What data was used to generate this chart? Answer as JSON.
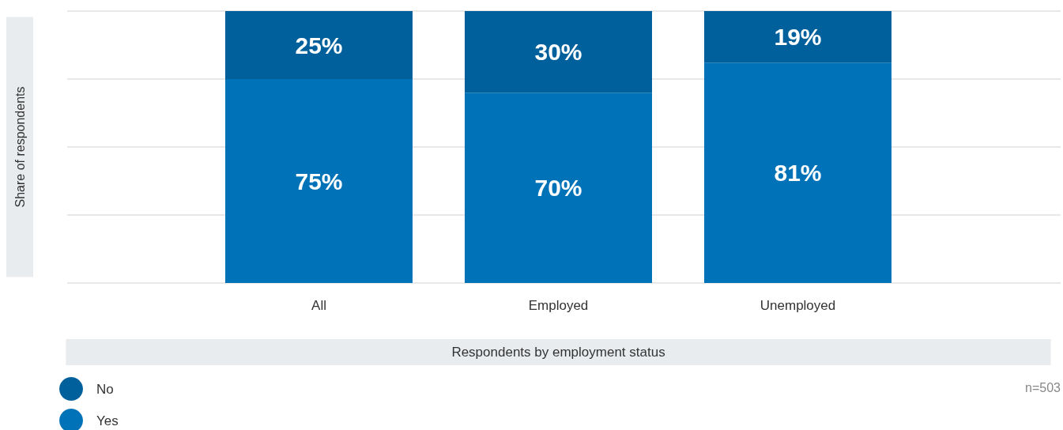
{
  "chart_data": {
    "type": "bar",
    "stacked": true,
    "xlabel": "Respondents by employment status",
    "ylabel": "Share of respondents",
    "categories": [
      "All",
      "Employed",
      "Unemployed"
    ],
    "series": [
      {
        "name": "Yes",
        "color": "#0073b8",
        "values": [
          75,
          70,
          81
        ],
        "value_labels": [
          "75%",
          "70%",
          "81%"
        ]
      },
      {
        "name": "No",
        "color": "#00609c",
        "values": [
          25,
          30,
          19
        ],
        "value_labels": [
          "25%",
          "30%",
          "19%"
        ]
      }
    ],
    "ylim": [
      0,
      100
    ],
    "yticks": [
      {
        "value": 0,
        "label": null
      },
      {
        "value": 25,
        "label": null
      },
      {
        "value": 50,
        "label": null
      },
      {
        "value": 75,
        "label": null
      },
      {
        "value": 100,
        "label": null
      }
    ],
    "tick_labels": "x",
    "grid": "y",
    "legend": "bottom left",
    "annotations": [
      "n=503"
    ]
  }
}
